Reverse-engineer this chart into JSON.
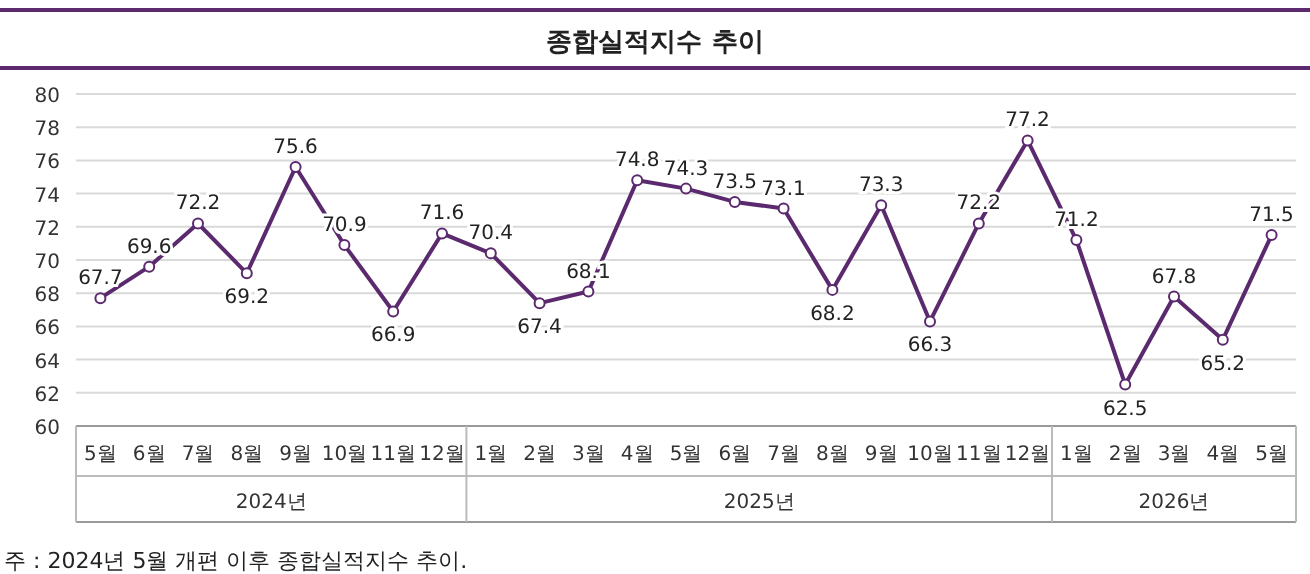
{
  "chart_data": {
    "type": "line",
    "title": "종합실적지수 추이",
    "categories": [
      "5월",
      "6월",
      "7월",
      "8월",
      "9월",
      "10월",
      "11월",
      "12월",
      "1월",
      "2월",
      "3월",
      "4월",
      "5월",
      "6월",
      "7월",
      "8월",
      "9월",
      "10월",
      "11월",
      "12월",
      "1월",
      "2월",
      "3월",
      "4월",
      "5월"
    ],
    "series": [
      {
        "color": "#5b2a6e",
        "values": [
          67.7,
          69.6,
          72.2,
          69.2,
          75.6,
          70.9,
          66.9,
          71.6,
          70.4,
          67.4,
          68.1,
          74.8,
          74.3,
          73.5,
          73.1,
          68.2,
          73.3,
          66.3,
          72.2,
          77.2,
          71.2,
          62.5,
          67.8,
          65.2,
          71.5
        ]
      }
    ],
    "ylim": [
      60,
      80
    ],
    "yticks": [
      60,
      62,
      64,
      66,
      68,
      70,
      72,
      74,
      76,
      78,
      80
    ],
    "grid": "y",
    "marker": "circle",
    "data_labels": true,
    "annotations": [
      "2024년",
      "2025년",
      "2026년",
      "주 : 2024년 5월 개편 이후 종합실적지수 추이."
    ]
  }
}
